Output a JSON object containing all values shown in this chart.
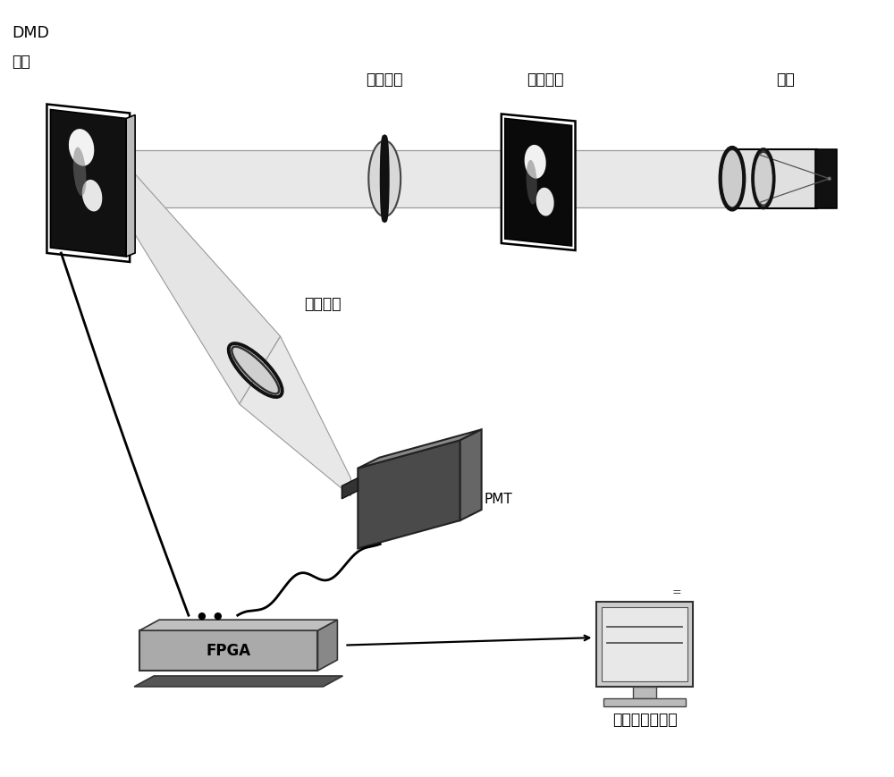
{
  "bg_color": "#ffffff",
  "labels": {
    "dmd_line1": "DMD",
    "dmd_line2": "微镜",
    "imaging_lens": "成像透镜",
    "target": "目标物体",
    "light_source": "光源",
    "focus_lens": "聚焦透镜",
    "pmt": "PMT",
    "fpga": "FPGA",
    "computer": "上位机处理单元"
  },
  "colors": {
    "black": "#000000",
    "dark_gray": "#3a3a3a",
    "mid_gray": "#606060",
    "gray": "#808080",
    "light_gray": "#aaaaaa",
    "lighter_gray": "#cccccc",
    "very_light_gray": "#e0e0e0",
    "beam_fill": "#e8e8e8",
    "white": "#ffffff"
  }
}
